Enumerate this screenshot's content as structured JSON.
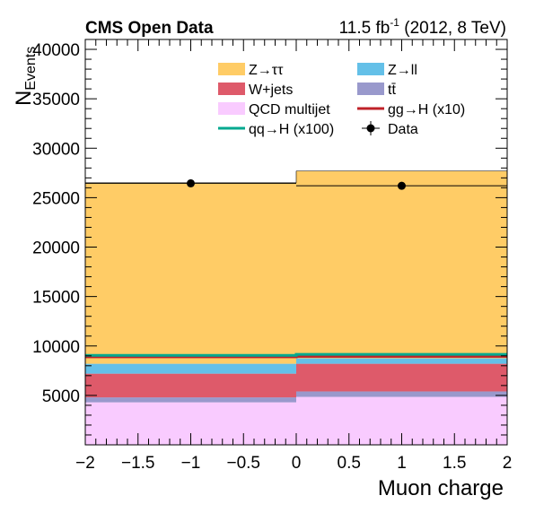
{
  "chart_data": {
    "type": "bar",
    "stacked": true,
    "title_left": "CMS Open Data",
    "title_right": {
      "prefix": "11.5 fb",
      "superscript": "-1",
      "suffix": " (2012, 8 TeV)"
    },
    "xlabel": "Muon charge",
    "ylabel": {
      "main": "N",
      "subscript": "Events"
    },
    "xlim": [
      -2,
      2
    ],
    "ylim": [
      0,
      41000
    ],
    "x_ticks": [
      -2,
      -1.5,
      -1,
      -0.5,
      0,
      0.5,
      1,
      1.5,
      2
    ],
    "x_tick_labels": [
      "−2",
      "−1.5",
      "−1",
      "−0.5",
      "0",
      "0.5",
      "1",
      "1.5",
      "2"
    ],
    "y_ticks": [
      5000,
      10000,
      15000,
      20000,
      25000,
      30000,
      35000,
      40000
    ],
    "y_tick_labels": [
      "5000",
      "10000",
      "15000",
      "20000",
      "25000",
      "30000",
      "35000",
      "40000"
    ],
    "bins": [
      {
        "low": -2,
        "high": 0
      },
      {
        "low": 0,
        "high": 2
      }
    ],
    "stack_order": [
      "QCD multijet",
      "tt̄",
      "W+jets",
      "Z→ll",
      "Z→ττ"
    ],
    "series": [
      {
        "name": "QCD multijet",
        "color": "#f9cbff",
        "values": [
          4300,
          4850
        ]
      },
      {
        "name": "tt̄",
        "color": "#9999cc",
        "values": [
          500,
          550
        ]
      },
      {
        "name": "W+jets",
        "color": "#de5a6a",
        "values": [
          2400,
          2800
        ]
      },
      {
        "name": "Z→ll",
        "color": "#64c0e8",
        "values": [
          1000,
          550
        ]
      },
      {
        "name": "Z→ττ",
        "color": "#ffcc66",
        "values": [
          18300,
          18950
        ]
      }
    ],
    "signal_lines": [
      {
        "name": "gg→H (x10)",
        "color": "#bf2229",
        "values": [
          8900,
          8950
        ]
      },
      {
        "name": "qq→H (x100)",
        "color": "#00a88f",
        "values": [
          9050,
          9150
        ]
      }
    ],
    "data_points": {
      "name": "Data",
      "x": [
        -1,
        1
      ],
      "y": [
        26450,
        26200
      ],
      "yerr": [
        163,
        162
      ]
    },
    "legend": {
      "placement": "top-center",
      "columns": 2,
      "entries": [
        {
          "label": "Z→ττ",
          "style": "box",
          "color": "#ffcc66"
        },
        {
          "label": "Z→ll",
          "style": "box",
          "color": "#64c0e8"
        },
        {
          "label": "W+jets",
          "style": "box",
          "color": "#de5a6a"
        },
        {
          "label": "tt̄",
          "style": "box",
          "color": "#9999cc"
        },
        {
          "label": "QCD multijet",
          "style": "box",
          "color": "#f9cbff"
        },
        {
          "label": "gg→H (x10)",
          "style": "line",
          "color": "#bf2229"
        },
        {
          "label": "qq→H (x100)",
          "style": "line",
          "color": "#00a88f"
        },
        {
          "label": "Data",
          "style": "marker",
          "color": "#000000"
        }
      ]
    }
  }
}
